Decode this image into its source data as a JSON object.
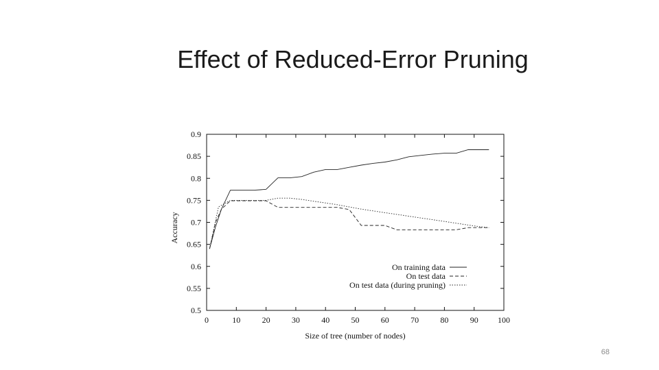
{
  "slide": {
    "title": "Effect of Reduced-Error Pruning",
    "number": "68"
  },
  "chart_data": {
    "type": "line",
    "title": "",
    "xlabel": "Size of tree (number of nodes)",
    "ylabel": "Accuracy",
    "xlim": [
      0,
      100
    ],
    "ylim": [
      0.5,
      0.9
    ],
    "xticks": [
      0,
      10,
      20,
      30,
      40,
      50,
      60,
      70,
      80,
      90,
      100
    ],
    "yticks": [
      0.5,
      0.55,
      0.6,
      0.65,
      0.7,
      0.75,
      0.8,
      0.85,
      0.9
    ],
    "legend_position": "bottom-right",
    "series": [
      {
        "name": "On training data",
        "style": "solid",
        "x": [
          1,
          3,
          5,
          8,
          12,
          16,
          18,
          20,
          24,
          28,
          32,
          36,
          40,
          44,
          48,
          52,
          56,
          60,
          64,
          68,
          72,
          76,
          80,
          84,
          88,
          92,
          95
        ],
        "y": [
          0.64,
          0.69,
          0.73,
          0.773,
          0.773,
          0.773,
          0.774,
          0.775,
          0.801,
          0.801,
          0.804,
          0.814,
          0.82,
          0.82,
          0.825,
          0.83,
          0.834,
          0.837,
          0.842,
          0.849,
          0.852,
          0.855,
          0.857,
          0.857,
          0.865,
          0.865,
          0.865
        ]
      },
      {
        "name": "On test data",
        "style": "dashed",
        "x": [
          1,
          3,
          5,
          8,
          12,
          16,
          20,
          24,
          28,
          32,
          36,
          40,
          44,
          48,
          52,
          56,
          60,
          64,
          68,
          72,
          76,
          80,
          84,
          88,
          92,
          95
        ],
        "y": [
          0.64,
          0.7,
          0.73,
          0.749,
          0.749,
          0.749,
          0.749,
          0.734,
          0.734,
          0.734,
          0.734,
          0.734,
          0.734,
          0.729,
          0.693,
          0.693,
          0.693,
          0.683,
          0.683,
          0.683,
          0.683,
          0.683,
          0.683,
          0.688,
          0.688,
          0.688
        ]
      },
      {
        "name": "On test data (during pruning)",
        "style": "dotted",
        "x": [
          1,
          4,
          8,
          12,
          16,
          20,
          24,
          28,
          32,
          36,
          40,
          44,
          48,
          52,
          56,
          60,
          64,
          68,
          72,
          76,
          80,
          84,
          88,
          92,
          95
        ],
        "y": [
          0.64,
          0.735,
          0.75,
          0.75,
          0.75,
          0.75,
          0.755,
          0.755,
          0.752,
          0.748,
          0.744,
          0.74,
          0.735,
          0.73,
          0.726,
          0.722,
          0.718,
          0.714,
          0.71,
          0.706,
          0.702,
          0.698,
          0.694,
          0.69,
          0.688
        ]
      }
    ]
  }
}
